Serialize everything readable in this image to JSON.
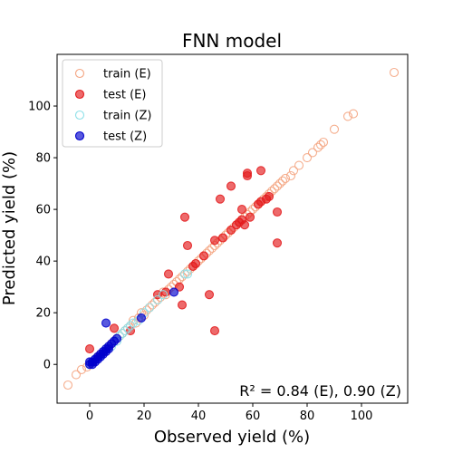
{
  "chart_data": {
    "type": "scatter",
    "title": "FNN model",
    "xlabel": "Observed yield (%)",
    "ylabel": "Predicted yield (%)",
    "xlim": [
      -12,
      117
    ],
    "ylim": [
      -15,
      120
    ],
    "xticks": [
      0,
      20,
      40,
      60,
      80,
      100
    ],
    "yticks": [
      0,
      20,
      40,
      60,
      80,
      100
    ],
    "grid": false,
    "legend_position": "top-left",
    "annotation": "R² = 0.84 (E), 0.90 (Z)",
    "series": [
      {
        "name": "train (E)",
        "color": "#f4a582",
        "style": "hollow",
        "points": [
          [
            -8,
            -8
          ],
          [
            -5,
            -4
          ],
          [
            -3,
            -2
          ],
          [
            -1,
            -1
          ],
          [
            0,
            0
          ],
          [
            1,
            1
          ],
          [
            2,
            2
          ],
          [
            3,
            3
          ],
          [
            4,
            4
          ],
          [
            5,
            5
          ],
          [
            6,
            6
          ],
          [
            7,
            7
          ],
          [
            8,
            8
          ],
          [
            9,
            9
          ],
          [
            10,
            10
          ],
          [
            11,
            11
          ],
          [
            12,
            12
          ],
          [
            13,
            13
          ],
          [
            14,
            14
          ],
          [
            15,
            15
          ],
          [
            16,
            17
          ],
          [
            17,
            16
          ],
          [
            18,
            18
          ],
          [
            19,
            20
          ],
          [
            20,
            19
          ],
          [
            21,
            21
          ],
          [
            22,
            22
          ],
          [
            23,
            23
          ],
          [
            24,
            24
          ],
          [
            25,
            25
          ],
          [
            26,
            26
          ],
          [
            27,
            28
          ],
          [
            28,
            27
          ],
          [
            29,
            29
          ],
          [
            30,
            30
          ],
          [
            31,
            31
          ],
          [
            32,
            32
          ],
          [
            33,
            33
          ],
          [
            34,
            34
          ],
          [
            35,
            35
          ],
          [
            36,
            36
          ],
          [
            37,
            37
          ],
          [
            38,
            38
          ],
          [
            39,
            39
          ],
          [
            40,
            40
          ],
          [
            41,
            41
          ],
          [
            42,
            42
          ],
          [
            43,
            43
          ],
          [
            44,
            44
          ],
          [
            45,
            45
          ],
          [
            46,
            46
          ],
          [
            47,
            47
          ],
          [
            48,
            48
          ],
          [
            49,
            49
          ],
          [
            50,
            50
          ],
          [
            51,
            51
          ],
          [
            52,
            52
          ],
          [
            53,
            53
          ],
          [
            54,
            54
          ],
          [
            55,
            55
          ],
          [
            56,
            56
          ],
          [
            57,
            57
          ],
          [
            58,
            58
          ],
          [
            59,
            59
          ],
          [
            60,
            60
          ],
          [
            61,
            61
          ],
          [
            62,
            62
          ],
          [
            63,
            63
          ],
          [
            64,
            64
          ],
          [
            65,
            65
          ],
          [
            66,
            66
          ],
          [
            67,
            67
          ],
          [
            68,
            68
          ],
          [
            69,
            69
          ],
          [
            70,
            70
          ],
          [
            71,
            71
          ],
          [
            72,
            72
          ],
          [
            74,
            73
          ],
          [
            75,
            75
          ],
          [
            77,
            77
          ],
          [
            80,
            80
          ],
          [
            82,
            82
          ],
          [
            84,
            84
          ],
          [
            85,
            85
          ],
          [
            86,
            86
          ],
          [
            90,
            91
          ],
          [
            95,
            96
          ],
          [
            97,
            97
          ],
          [
            112,
            113
          ]
        ]
      },
      {
        "name": "test (E)",
        "color": "#e31a1c",
        "style": "filled",
        "points": [
          [
            0,
            6
          ],
          [
            3,
            3
          ],
          [
            9,
            14
          ],
          [
            15,
            13
          ],
          [
            25,
            27
          ],
          [
            28,
            28
          ],
          [
            29,
            35
          ],
          [
            33,
            30
          ],
          [
            34,
            23
          ],
          [
            35,
            57
          ],
          [
            36,
            46
          ],
          [
            38,
            38
          ],
          [
            39,
            39
          ],
          [
            42,
            42
          ],
          [
            44,
            27
          ],
          [
            46,
            13
          ],
          [
            46,
            48
          ],
          [
            48,
            64
          ],
          [
            49,
            49
          ],
          [
            52,
            52
          ],
          [
            52,
            69
          ],
          [
            54,
            54
          ],
          [
            55,
            55
          ],
          [
            56,
            56
          ],
          [
            56,
            60
          ],
          [
            57,
            54
          ],
          [
            58,
            74
          ],
          [
            58,
            73
          ],
          [
            59,
            57
          ],
          [
            62,
            62
          ],
          [
            63,
            63
          ],
          [
            63,
            75
          ],
          [
            65,
            64
          ],
          [
            66,
            65
          ],
          [
            69,
            59
          ],
          [
            69,
            47
          ]
        ]
      },
      {
        "name": "train (Z)",
        "color": "#8ee0e8",
        "style": "hollow",
        "points": [
          [
            0,
            0
          ],
          [
            1,
            1
          ],
          [
            2,
            2
          ],
          [
            3,
            3
          ],
          [
            4,
            3
          ],
          [
            5,
            5
          ],
          [
            6,
            6
          ],
          [
            7,
            7
          ],
          [
            8,
            7
          ],
          [
            9,
            9
          ],
          [
            10,
            9
          ],
          [
            11,
            11
          ],
          [
            12,
            12
          ],
          [
            13,
            13
          ],
          [
            14,
            14
          ],
          [
            15,
            15
          ],
          [
            16,
            16
          ],
          [
            18,
            17
          ],
          [
            20,
            20
          ],
          [
            22,
            22
          ],
          [
            25,
            25
          ],
          [
            27,
            27
          ],
          [
            35,
            35
          ],
          [
            36,
            35
          ]
        ]
      },
      {
        "name": "test (Z)",
        "color": "#0000cc",
        "style": "filled",
        "points": [
          [
            0,
            0
          ],
          [
            0,
            1
          ],
          [
            1,
            0
          ],
          [
            1,
            1
          ],
          [
            2,
            2
          ],
          [
            2,
            1
          ],
          [
            3,
            2
          ],
          [
            3,
            3
          ],
          [
            4,
            3
          ],
          [
            4,
            4
          ],
          [
            5,
            4
          ],
          [
            5,
            5
          ],
          [
            6,
            5
          ],
          [
            6,
            16
          ],
          [
            6,
            6
          ],
          [
            7,
            6
          ],
          [
            7,
            7
          ],
          [
            8,
            8
          ],
          [
            9,
            9
          ],
          [
            10,
            10
          ],
          [
            19,
            18
          ],
          [
            31,
            28
          ]
        ]
      }
    ]
  }
}
